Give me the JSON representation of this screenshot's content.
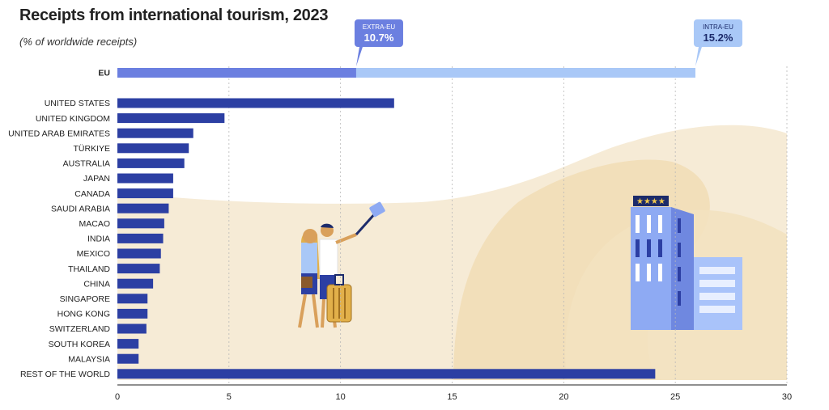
{
  "header": {
    "title": "Receipts from international tourism, 2023",
    "subtitle": "(% of worldwide receipts)"
  },
  "colors": {
    "bar": "#2c3fa3",
    "extra_eu": "#6b7fe0",
    "intra_eu": "#a9c8f7",
    "background_shape": "#f6ebd6",
    "grid": "#b8b8b8"
  },
  "chart_data": {
    "type": "bar",
    "orientation": "horizontal",
    "title": "Receipts from international tourism, 2023",
    "subtitle": "(% of worldwide receipts)",
    "xlim": [
      0,
      30
    ],
    "xticks": [
      0,
      5,
      10,
      15,
      20,
      25,
      30
    ],
    "grid": "vertical dashed",
    "eu": {
      "category": "EU",
      "segments": [
        {
          "name": "EXTRA-EU",
          "value": 10.7
        },
        {
          "name": "INTRA-EU",
          "value": 15.2
        }
      ]
    },
    "categories": [
      "UNITED STATES",
      "UNITED KINGDOM",
      "UNITED ARAB EMIRATES",
      "TÜRKIYE",
      "AUSTRALIA",
      "JAPAN",
      "CANADA",
      "SAUDI ARABIA",
      "MACAO",
      "INDIA",
      "MEXICO",
      "THAILAND",
      "CHINA",
      "SINGAPORE",
      "HONG KONG",
      "SWITZERLAND",
      "SOUTH KOREA",
      "MALAYSIA",
      "REST OF THE WORLD"
    ],
    "values": [
      12.4,
      4.8,
      3.4,
      3.2,
      3.0,
      2.5,
      2.5,
      2.3,
      2.1,
      2.05,
      1.95,
      1.9,
      1.6,
      1.35,
      1.35,
      1.3,
      0.95,
      0.95,
      24.1
    ]
  }
}
